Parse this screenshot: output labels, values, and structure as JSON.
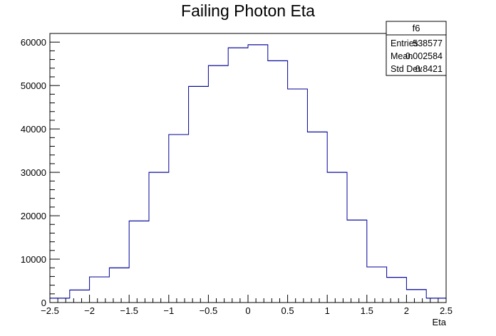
{
  "chart_data": {
    "type": "bar",
    "style": "step-histogram",
    "title": "Failing Photon Eta",
    "xlabel": "Eta",
    "ylabel": "",
    "xlim": [
      -2.5,
      2.5
    ],
    "ylim": [
      0,
      62000
    ],
    "x_ticks": [
      -2.5,
      -2,
      -1.5,
      -1,
      -0.5,
      0,
      0.5,
      1,
      1.5,
      2,
      2.5
    ],
    "x_tick_labels": [
      "−2.5",
      "−2",
      "−1.5",
      "−1",
      "−0.5",
      "0",
      "0.5",
      "1",
      "1.5",
      "2",
      "2.5"
    ],
    "y_ticks": [
      0,
      10000,
      20000,
      30000,
      40000,
      50000,
      60000
    ],
    "y_tick_labels": [
      "0",
      "10000",
      "20000",
      "30000",
      "40000",
      "50000",
      "60000"
    ],
    "bin_edges": [
      -2.5,
      -2.25,
      -2.0,
      -1.75,
      -1.5,
      -1.25,
      -1.0,
      -0.75,
      -0.5,
      -0.25,
      0.0,
      0.25,
      0.5,
      0.75,
      1.0,
      1.25,
      1.5,
      1.75,
      2.0,
      2.25,
      2.5
    ],
    "series": [
      {
        "values": [
          1000,
          2900,
          5900,
          8000,
          18800,
          30000,
          38700,
          49800,
          54600,
          58700,
          59400,
          55700,
          49200,
          39300,
          30000,
          19000,
          8200,
          5800,
          3000,
          1000
        ],
        "color": "#000099"
      }
    ],
    "stats_box": {
      "name": "f6",
      "rows": [
        {
          "label": "Entries",
          "value": "538577"
        },
        {
          "label": "Mean",
          "value": "0.002584"
        },
        {
          "label": "Std Dev",
          "value": "0.8421"
        }
      ]
    },
    "grid": false,
    "legend": "none"
  }
}
